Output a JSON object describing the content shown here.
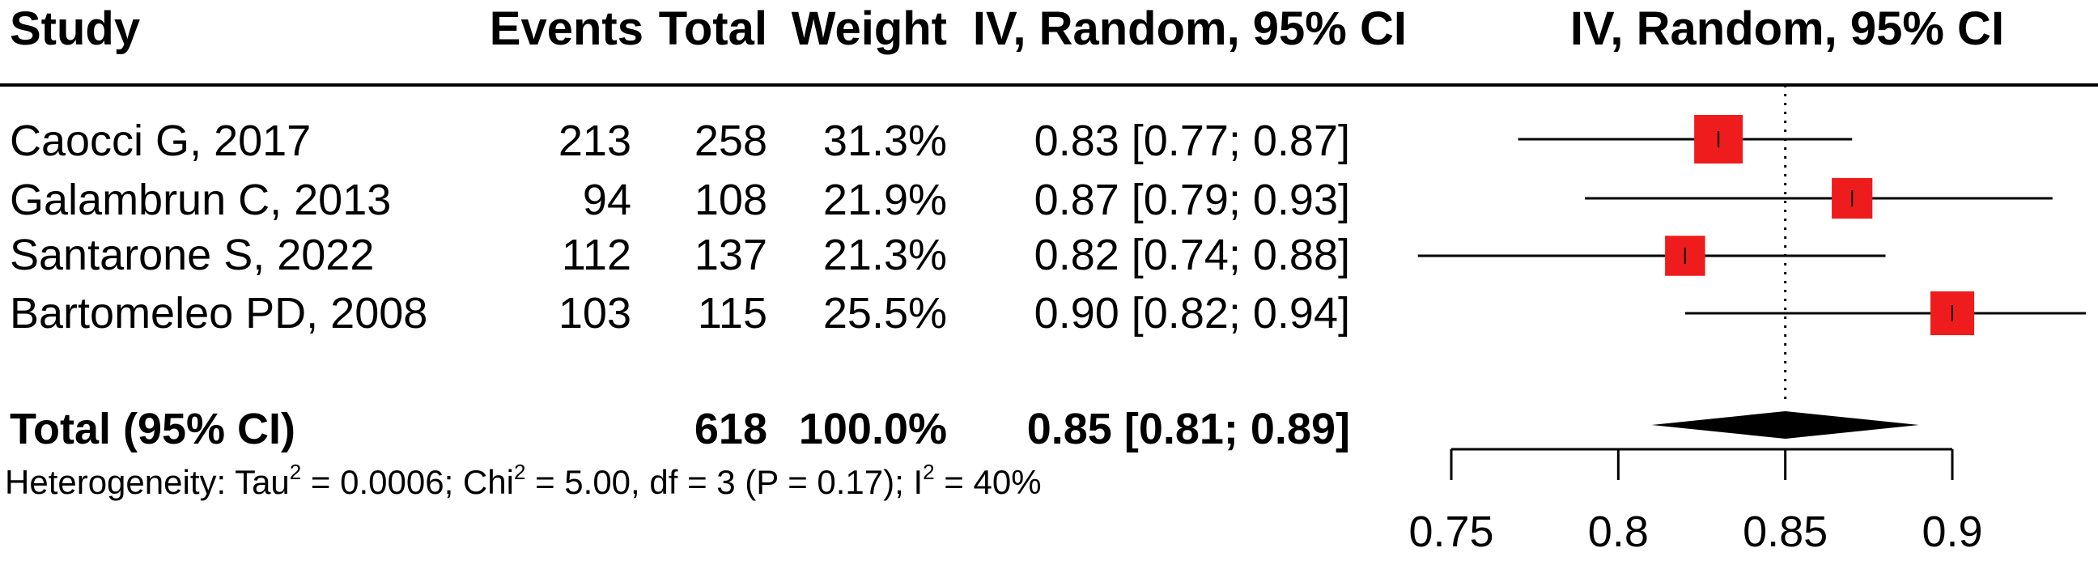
{
  "headers": {
    "study": "Study",
    "events": "Events",
    "total": "Total",
    "weight": "Weight",
    "ci": "IV, Random, 95% CI",
    "plot": "IV, Random, 95% CI"
  },
  "studies": [
    {
      "name": "Caocci G, 2017",
      "events": "213",
      "total": "258",
      "weight": "31.3%",
      "ci": "0.83 [0.77; 0.87]"
    },
    {
      "name": "Galambrun C, 2013",
      "events": "94",
      "total": "108",
      "weight": "21.9%",
      "ci": "0.87 [0.79; 0.93]"
    },
    {
      "name": "Santarone S, 2022",
      "events": "112",
      "total": "137",
      "weight": "21.3%",
      "ci": "0.82 [0.74; 0.88]"
    },
    {
      "name": "Bartomeleo PD, 2008",
      "events": "103",
      "total": "115",
      "weight": "25.5%",
      "ci": "0.90 [0.82; 0.94]"
    }
  ],
  "total_row": {
    "label": "Total (95% CI)",
    "total": "618",
    "weight": "100.0%",
    "ci": "0.85 [0.81; 0.89]"
  },
  "heterogeneity": {
    "p1": "Heterogeneity: Tau",
    "sup1": "2",
    "p2": " = 0.0006; Chi",
    "sup2": "2",
    "p3": " = 5.00, df = 3 (P = 0.17); I",
    "sup3": "2",
    "p4": " = 40%"
  },
  "colors": {
    "square": "#ee1c1c",
    "diamond": "#000000",
    "line": "#000000"
  },
  "chart_data": {
    "type": "forest",
    "x_ticks": [
      0.75,
      0.8,
      0.85,
      0.9
    ],
    "x_tick_labels": [
      "0.75",
      "0.8",
      "0.85",
      "0.9"
    ],
    "xlim": [
      0.75,
      0.9
    ],
    "reference_line": 0.85,
    "studies": [
      {
        "name": "Caocci G, 2017",
        "estimate": 0.83,
        "lower": 0.77,
        "upper": 0.87,
        "weight": 31.3
      },
      {
        "name": "Galambrun C, 2013",
        "estimate": 0.87,
        "lower": 0.79,
        "upper": 0.93,
        "weight": 21.9
      },
      {
        "name": "Santarone S, 2022",
        "estimate": 0.82,
        "lower": 0.74,
        "upper": 0.88,
        "weight": 21.3
      },
      {
        "name": "Bartomeleo PD, 2008",
        "estimate": 0.9,
        "lower": 0.82,
        "upper": 0.94,
        "weight": 25.5
      }
    ],
    "pooled": {
      "estimate": 0.85,
      "lower": 0.81,
      "upper": 0.89
    }
  }
}
